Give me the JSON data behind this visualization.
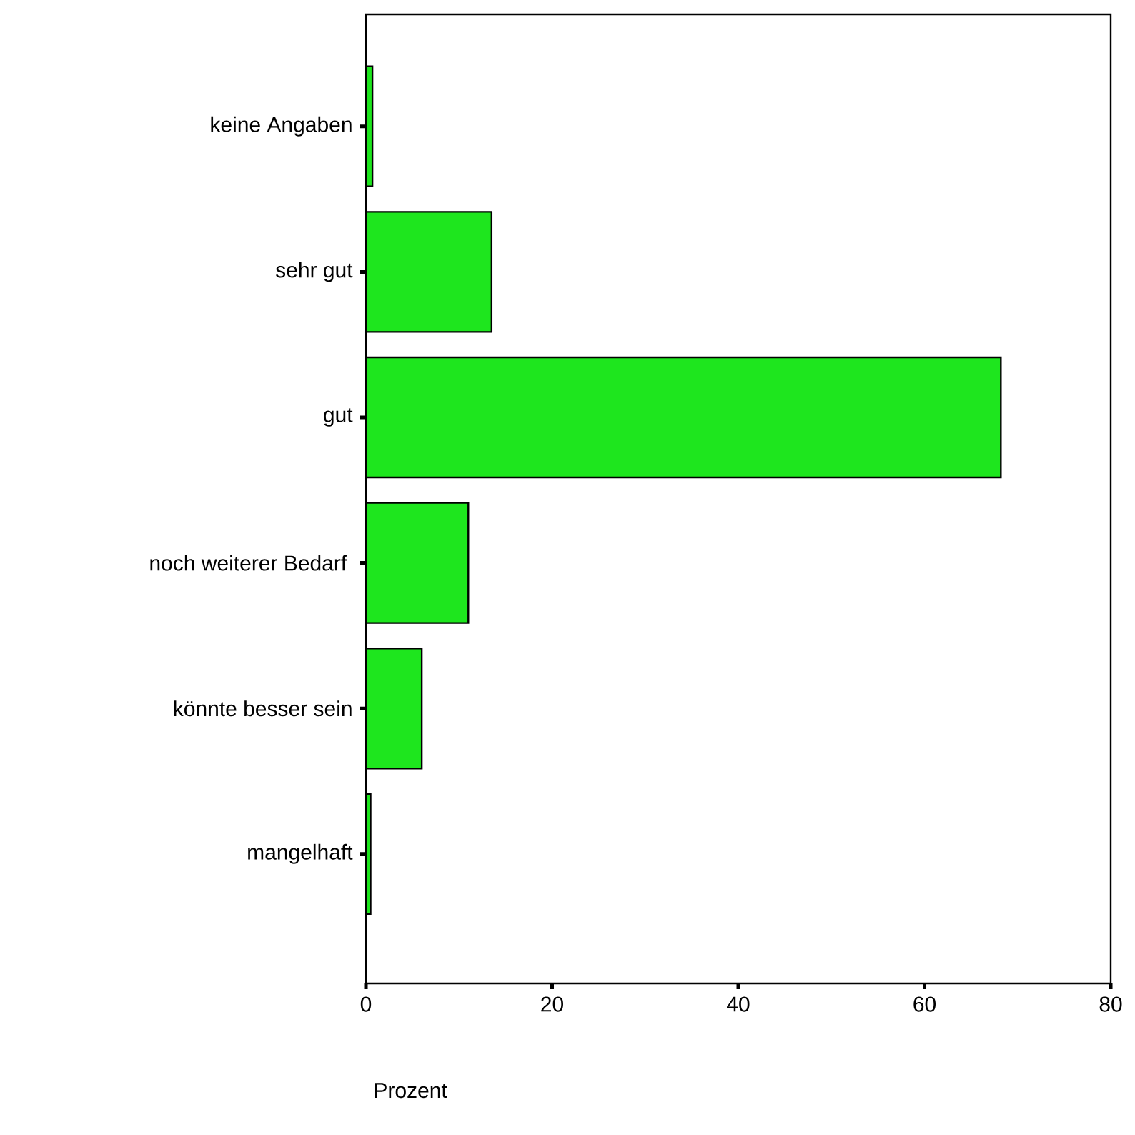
{
  "chart_data": {
    "type": "bar",
    "orientation": "horizontal",
    "xlabel": "Prozent",
    "categories": [
      "keine Angaben",
      "sehr gut",
      "gut",
      "noch weiterer Bedarf ",
      "könnte besser sein",
      "mangelhaft"
    ],
    "values": [
      0.7,
      13.5,
      68.2,
      11.0,
      6.0,
      0.5
    ],
    "color": "#1ee61e",
    "xlim": [
      0,
      80
    ],
    "xticks": [
      0,
      20,
      40,
      60,
      80
    ],
    "grid": false
  }
}
